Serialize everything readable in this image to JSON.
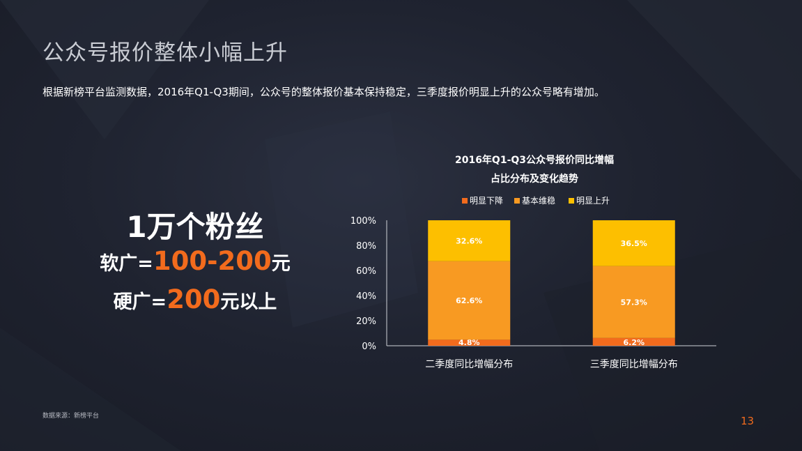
{
  "slide": {
    "title": "公众号报价整体小幅上升",
    "subtitle": "根据新榜平台监测数据，2016年Q1-Q3期间，公众号的整体报价基本保持稳定，三季度报价明显上升的公众号略有增加。",
    "highlight": {
      "line1": "1万个粉丝",
      "soft_label": "软广=",
      "soft_value": "100-200",
      "soft_unit": "元",
      "hard_label": "硬广=",
      "hard_value": "200",
      "hard_unit": "元以上"
    },
    "source": "数据来源：新榜平台",
    "page_number": "13"
  },
  "colors": {
    "accent": "#f26b1d",
    "decrease": "#f26b1d",
    "stable": "#f89a22",
    "increase": "#fdbf00",
    "axis": "#cfd2d8"
  },
  "chart_data": {
    "type": "bar",
    "stacked": true,
    "title": "2016年Q1-Q3公众号报价同比增幅",
    "subtitle": "占比分布及变化趋势",
    "categories": [
      "二季度同比增幅分布",
      "三季度同比增幅分布"
    ],
    "series": [
      {
        "name": "明显下降",
        "values": [
          4.8,
          6.2
        ],
        "labels": [
          "4.8%",
          "6.2%"
        ],
        "color": "#f26b1d"
      },
      {
        "name": "基本维稳",
        "values": [
          62.6,
          57.3
        ],
        "labels": [
          "62.6%",
          "57.3%"
        ],
        "color": "#f89a22"
      },
      {
        "name": "明显上升",
        "values": [
          32.6,
          36.5
        ],
        "labels": [
          "32.6%",
          "36.5%"
        ],
        "color": "#fdbf00"
      }
    ],
    "ylim": [
      0,
      100
    ],
    "yticks": [
      "0%",
      "20%",
      "40%",
      "60%",
      "80%",
      "100%"
    ],
    "legend_position": "top",
    "grid": false
  }
}
